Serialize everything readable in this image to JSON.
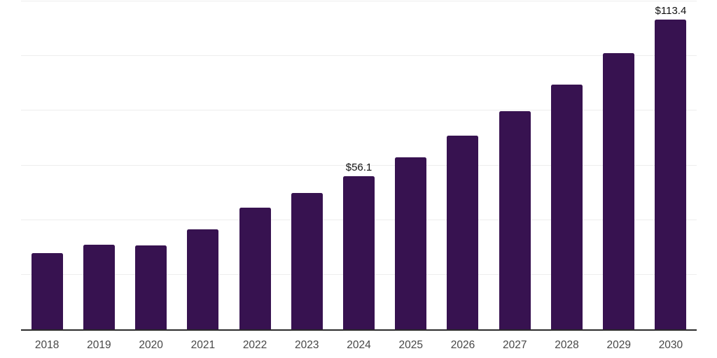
{
  "chart_data": {
    "type": "bar",
    "title": "",
    "xlabel": "",
    "ylabel": "",
    "categories": [
      "2018",
      "2019",
      "2020",
      "2021",
      "2022",
      "2023",
      "2024",
      "2025",
      "2026",
      "2027",
      "2028",
      "2029",
      "2030"
    ],
    "values": [
      27.9,
      30.9,
      30.7,
      36.7,
      44.5,
      49.8,
      56.1,
      63.0,
      70.9,
      79.8,
      89.6,
      101.0,
      113.4
    ],
    "data_labels": [
      "",
      "",
      "",
      "",
      "",
      "",
      "$56.1",
      "",
      "",
      "",
      "",
      "",
      "$113.4"
    ],
    "ylim": [
      0,
      120
    ],
    "grid": true,
    "gridline_step": 20,
    "y_tick_labels_visible": false,
    "legend_position": "none",
    "colors": {
      "bar": "#371250",
      "axis_line": "#2b2b2b",
      "gridline": "#ededed",
      "x_tick_label": "#474747",
      "value_label": "#111111",
      "background": "#ffffff"
    }
  }
}
